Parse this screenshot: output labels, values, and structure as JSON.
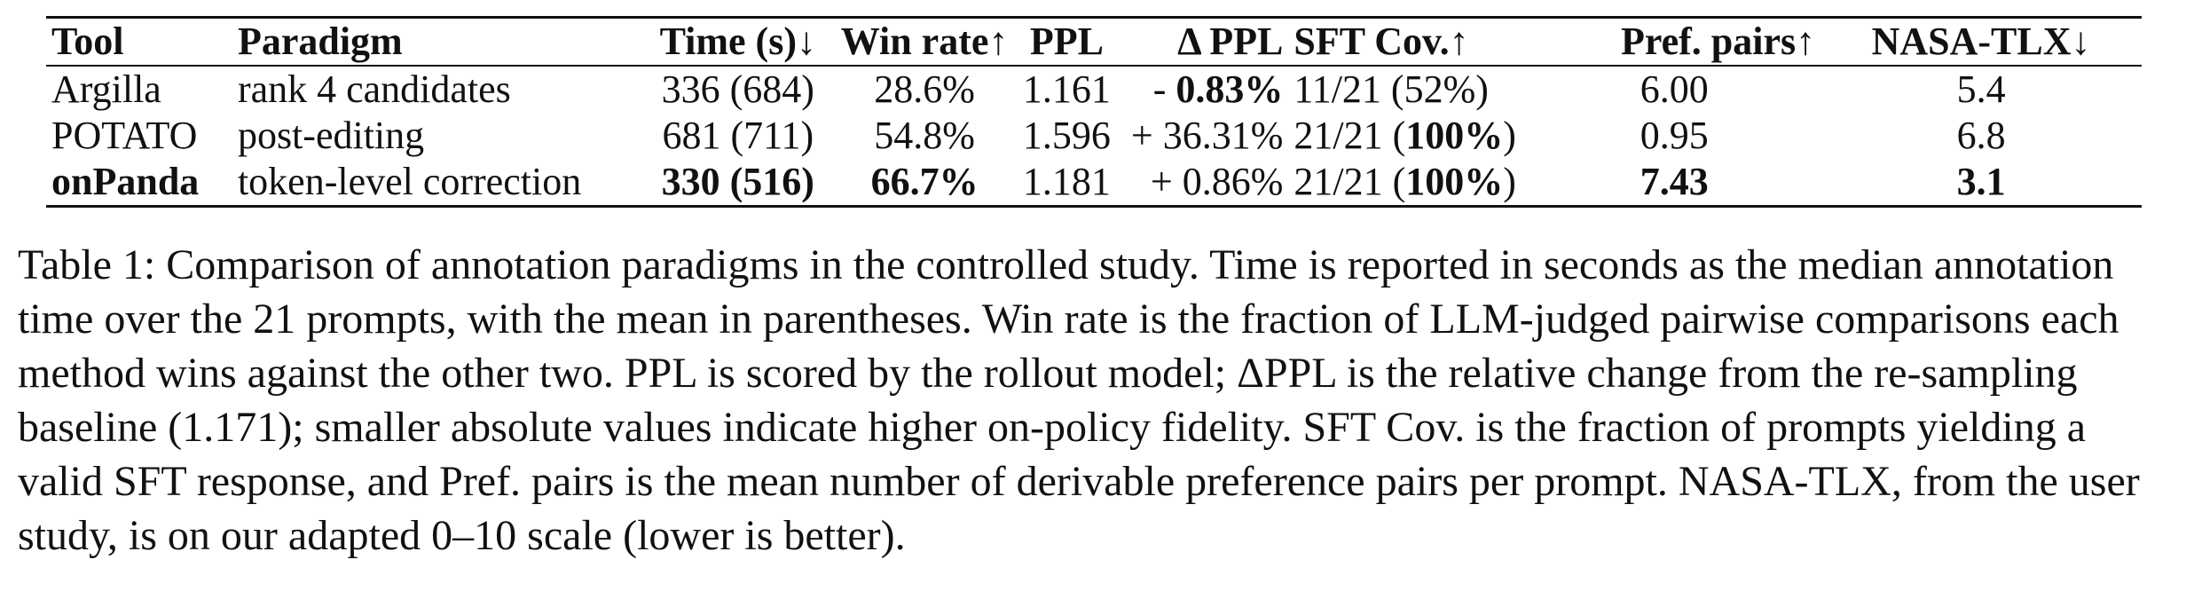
{
  "table": {
    "headers": {
      "tool": "Tool",
      "paradigm": "Paradigm",
      "time": "Time (s)↓",
      "win_rate": "Win rate↑",
      "ppl": "PPL",
      "delta_ppl": "Δ PPL",
      "sft_cov": "SFT Cov.↑",
      "pref_pairs": "Pref. pairs↑",
      "nasa_tlx": "NASA-TLX↓"
    },
    "rows": [
      {
        "tool": "Argilla",
        "paradigm": "rank 4 candidates",
        "time": "336 (684)",
        "win_rate": "28.6%",
        "ppl": "1.161",
        "delta_sign": "- ",
        "delta_value": "0.83%",
        "sft_a": "11/21 (",
        "sft_b": "52%",
        "sft_c": ")",
        "pref_pairs": "6.00",
        "nasa_tlx": "5.4"
      },
      {
        "tool": "POTATO",
        "paradigm": "post-editing",
        "time": "681 (711)",
        "win_rate": "54.8%",
        "ppl": "1.596",
        "delta_sign": "+ ",
        "delta_value": "36.31%",
        "sft_a": "21/21 (",
        "sft_b": "100%",
        "sft_c": ")",
        "pref_pairs": "0.95",
        "nasa_tlx": "6.8"
      },
      {
        "tool": "onPanda",
        "paradigm": "token-level correction",
        "time": "330 (516)",
        "win_rate": "66.7%",
        "ppl": "1.181",
        "delta_sign": "+ ",
        "delta_value": "0.86%",
        "sft_a": "21/21 (",
        "sft_b": "100%",
        "sft_c": ")",
        "pref_pairs": "7.43",
        "nasa_tlx": "3.1"
      }
    ]
  },
  "caption": "Table 1: Comparison of annotation paradigms in the controlled study. Time is reported in seconds as the median annotation time over the 21 prompts, with the mean in parentheses. Win rate is the fraction of LLM-judged pairwise comparisons each method wins against the other two. PPL is scored by the rollout model; ΔPPL is the relative change from the re-sampling baseline (1.171); smaller absolute values indicate higher on-policy fidelity. SFT Cov. is the fraction of prompts yielding a valid SFT response, and Pref. pairs is the mean number of derivable preference pairs per prompt. NASA-TLX, from the user study, is on our adapted 0–10 scale (lower is better)."
}
